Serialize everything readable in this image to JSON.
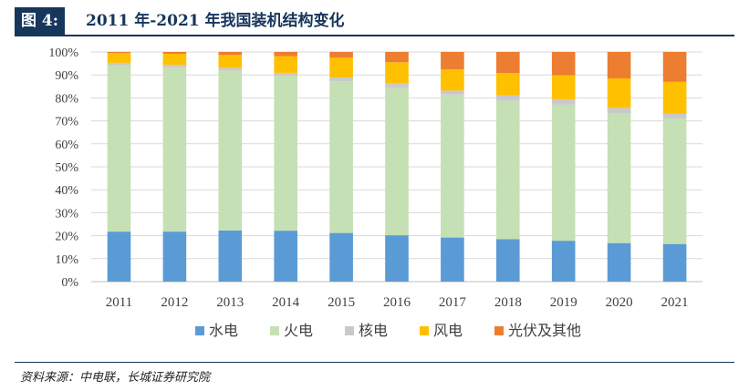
{
  "figure": {
    "badge": "图 4:",
    "title": "2011 年-2021 年我国装机结构变化",
    "source": "资料来源：中电联，长城证券研究院"
  },
  "colors": {
    "header": "#16365c",
    "series": [
      "#5b9bd5",
      "#c5e0b4",
      "#c9c9c9",
      "#ffc000",
      "#ed7d31"
    ]
  },
  "chart_data": {
    "type": "bar",
    "stacked": true,
    "percent": true,
    "categories": [
      "2011",
      "2012",
      "2013",
      "2014",
      "2015",
      "2016",
      "2017",
      "2018",
      "2019",
      "2020",
      "2021"
    ],
    "yticks": [
      "0%",
      "10%",
      "20%",
      "30%",
      "40%",
      "50%",
      "60%",
      "70%",
      "80%",
      "90%",
      "100%"
    ],
    "ylim": [
      0,
      100
    ],
    "grid": true,
    "legend_position": "bottom",
    "series": [
      {
        "name": "水电",
        "values": [
          21.8,
          21.8,
          22.3,
          22.2,
          21.2,
          20.2,
          19.2,
          18.5,
          17.8,
          16.8,
          16.4
        ]
      },
      {
        "name": "火电",
        "values": [
          72.3,
          71.5,
          69.6,
          67.3,
          66.0,
          64.3,
          62.2,
          60.2,
          59.2,
          56.6,
          54.6
        ]
      },
      {
        "name": "核电",
        "values": [
          1.2,
          1.1,
          1.2,
          1.4,
          1.7,
          2.0,
          1.8,
          2.4,
          2.4,
          2.3,
          2.2
        ]
      },
      {
        "name": "风电",
        "values": [
          4.2,
          4.8,
          5.6,
          7.2,
          8.6,
          9.0,
          9.2,
          9.7,
          10.4,
          12.8,
          13.8
        ]
      },
      {
        "name": "光伏及其他",
        "values": [
          0.5,
          0.8,
          1.3,
          1.9,
          2.5,
          4.5,
          7.6,
          9.2,
          10.2,
          11.5,
          13.0
        ]
      }
    ]
  }
}
